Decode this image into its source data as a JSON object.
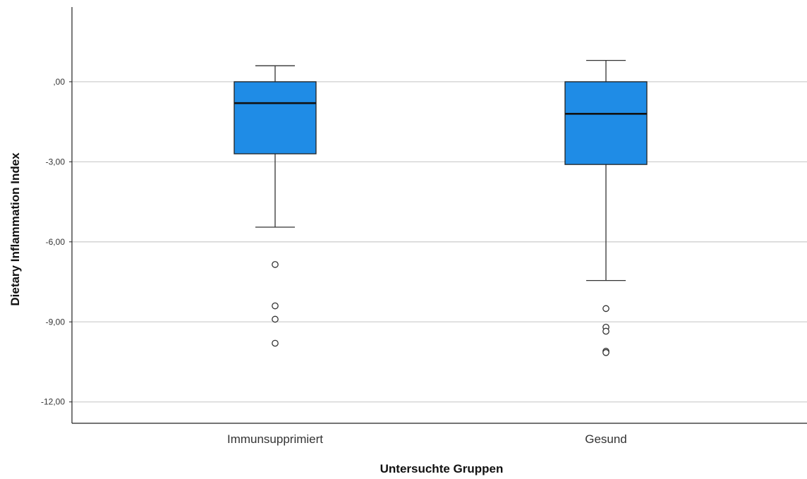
{
  "chart_data": {
    "type": "boxplot",
    "title": "",
    "xlabel": "Untersuchte Gruppen",
    "ylabel": "Dietary Inflammation Index",
    "categories": [
      "Immunsupprimiert",
      "Gesund"
    ],
    "ylim": [
      -12.8,
      2.8
    ],
    "yticks": [
      0,
      -3,
      -6,
      -9,
      -12
    ],
    "ytick_labels": [
      ",00",
      "-3,00",
      "-6,00",
      "-9,00",
      "-12,00"
    ],
    "grid": true,
    "box_color": "#1f8ce6",
    "series": [
      {
        "category": "Immunsupprimiert",
        "whisker_low": -5.45,
        "q1": -2.7,
        "median": -0.8,
        "q3": 0.0,
        "whisker_high": 0.6,
        "outliers": [
          -6.85,
          -8.4,
          -8.9,
          -9.8
        ]
      },
      {
        "category": "Gesund",
        "whisker_low": -7.45,
        "q1": -3.1,
        "median": -1.2,
        "q3": 0.0,
        "whisker_high": 0.8,
        "outliers": [
          -8.5,
          -9.2,
          -9.35,
          -10.1,
          -10.15
        ]
      }
    ]
  }
}
